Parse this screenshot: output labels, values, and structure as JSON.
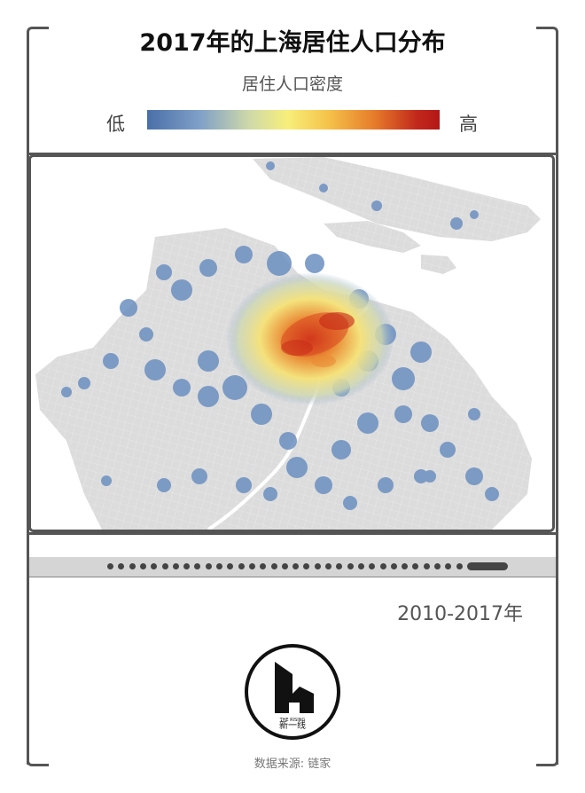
{
  "title": "2017年的上海居住人口分布",
  "legend": {
    "title": "居住人口密度",
    "low_label": "低",
    "high_label": "高",
    "colors": [
      "#4a6fa8",
      "#7fa0c8",
      "#f7ef7a",
      "#e67a2a",
      "#b51616"
    ]
  },
  "timeline": {
    "range_label": "2010-2017年"
  },
  "brand": {
    "logo_name": "新一线",
    "logo_tagline": "THE RISING"
  },
  "source": "数据来源: 链家",
  "colors": {
    "land": "#dcdcdc",
    "roads": "#ffffff",
    "border": "#555555"
  }
}
